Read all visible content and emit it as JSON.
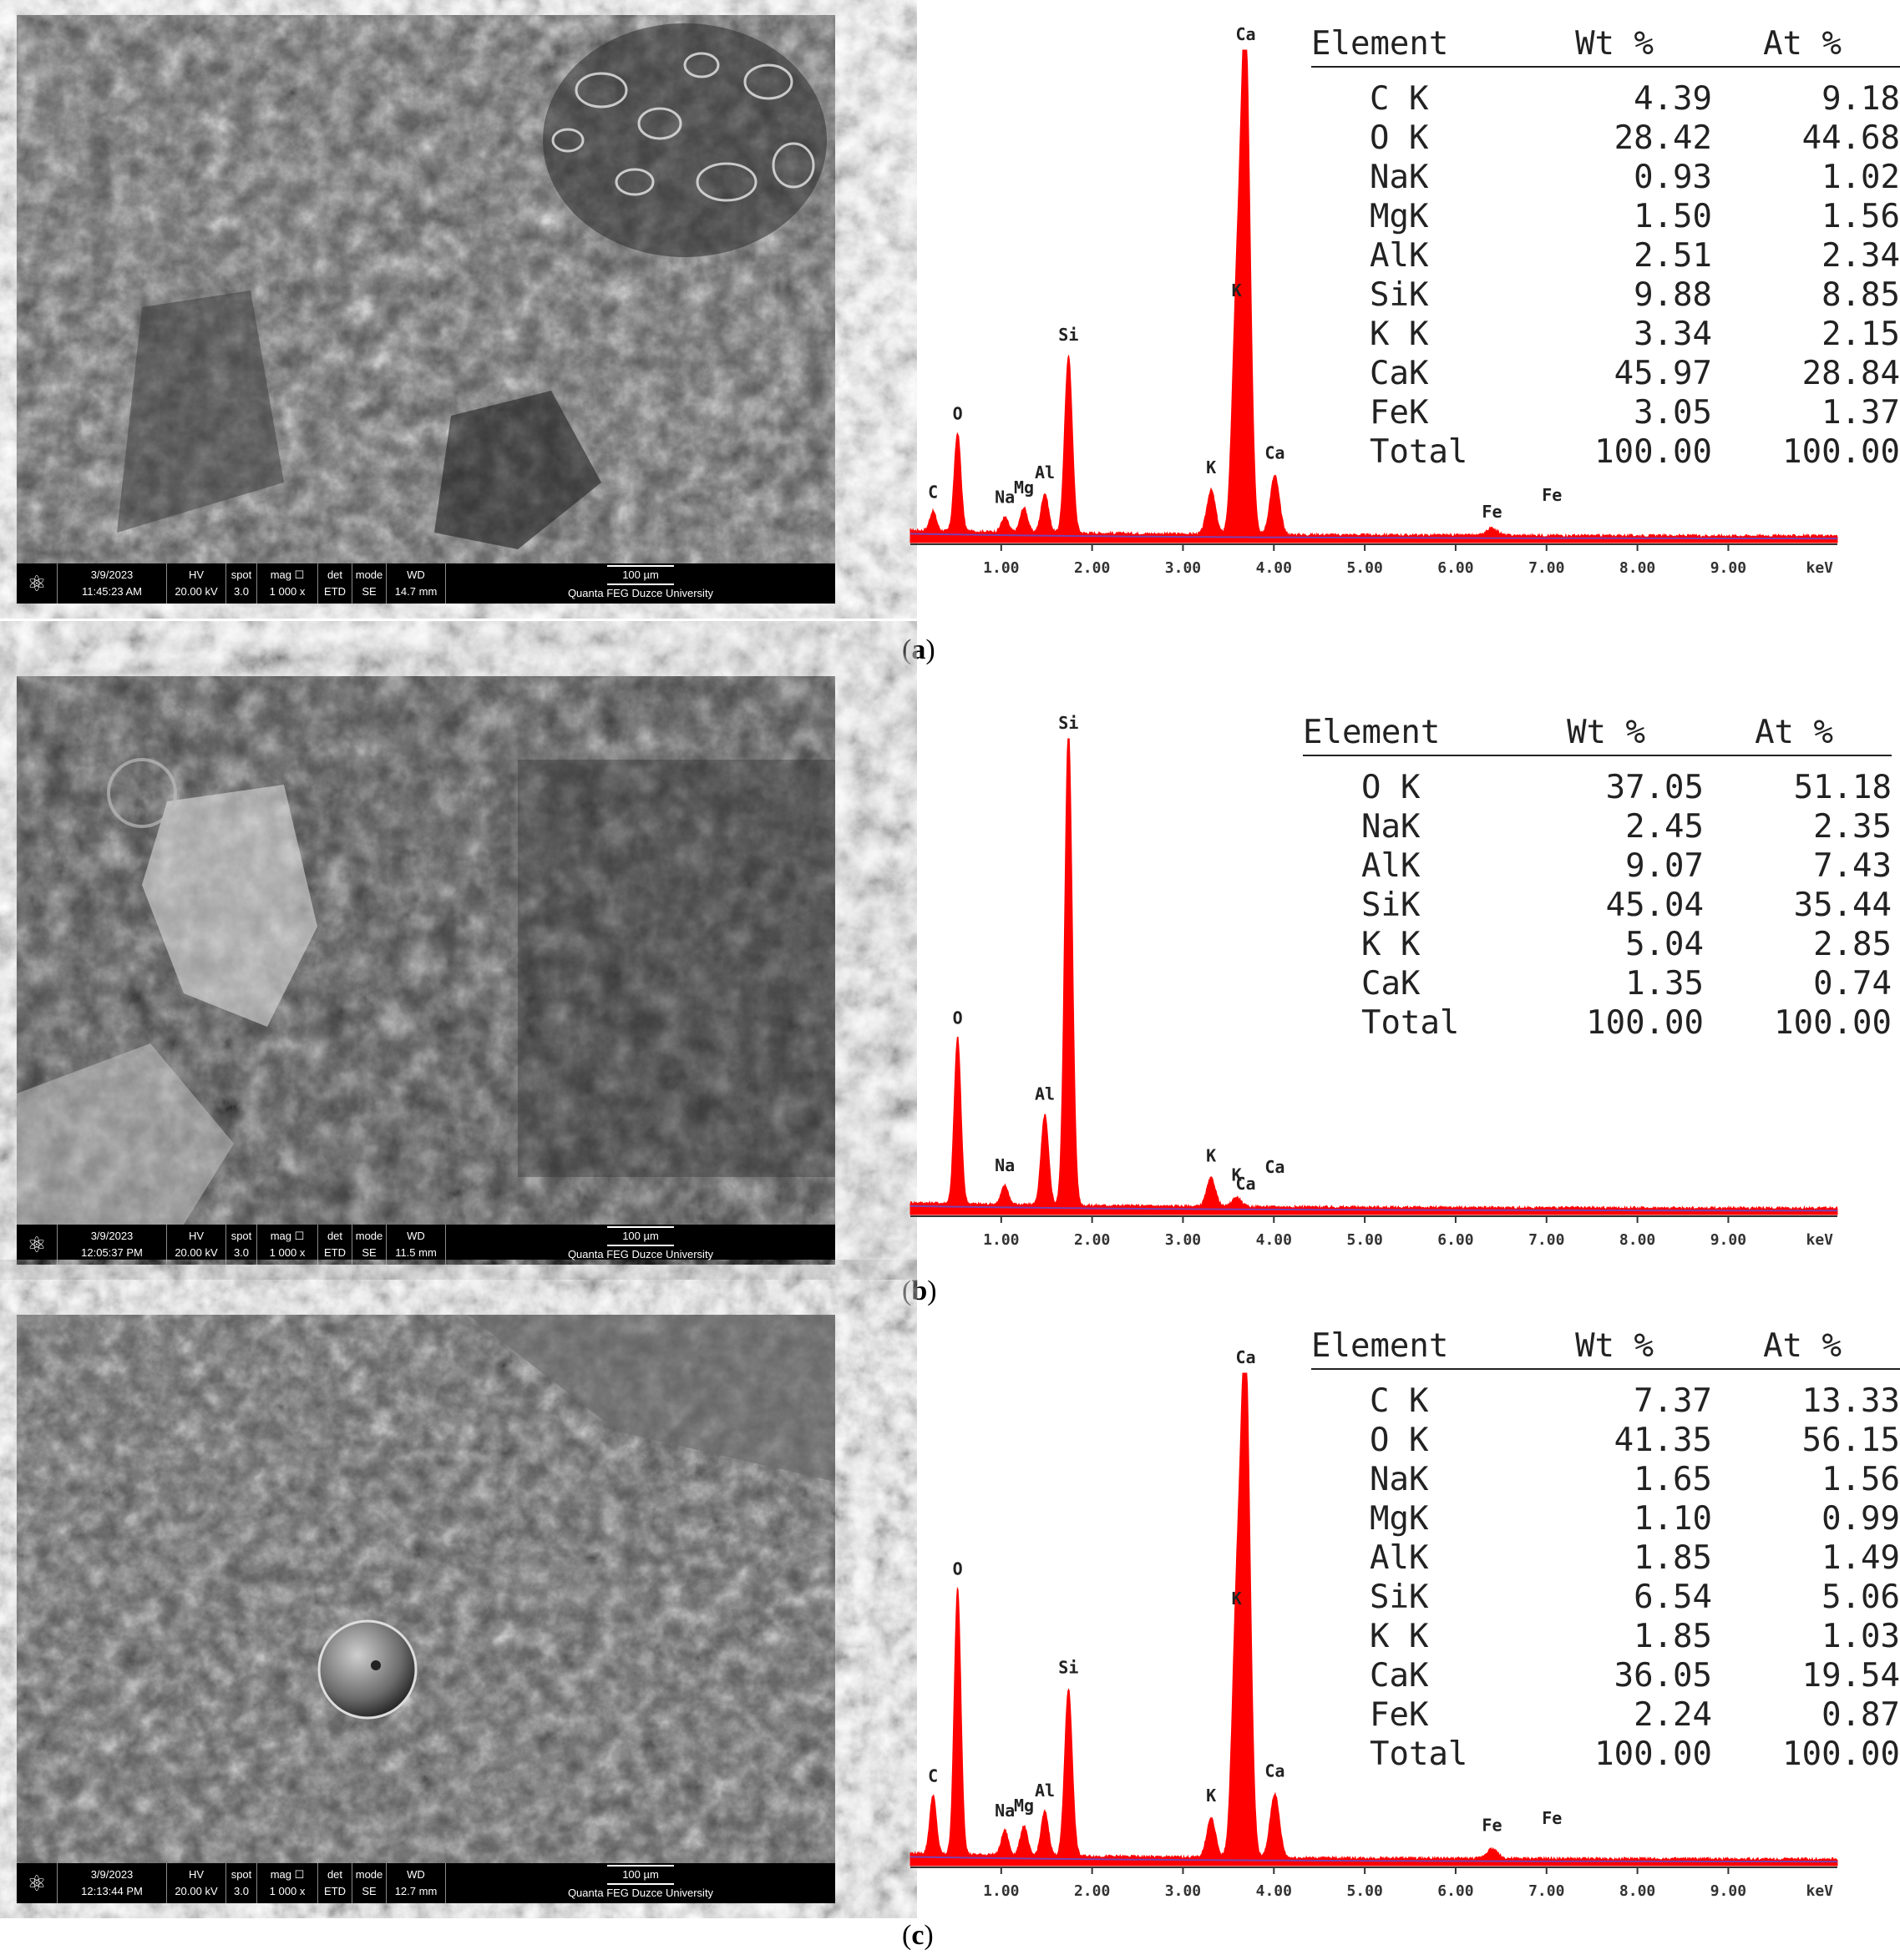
{
  "panels": [
    {
      "caption_letter": "a",
      "sem": {
        "date": "3/9/2023",
        "time": "11:45:23 AM",
        "hv_label": "HV",
        "hv": "20.00 kV",
        "spot_label": "spot",
        "spot": "3.0",
        "mag_label": "mag ☐",
        "mag": "1 000 x",
        "det_label": "det",
        "det": "ETD",
        "mode_label": "mode",
        "mode": "SE",
        "wd_label": "WD",
        "wd": "14.7 mm",
        "scale": "100 µm",
        "instrument": "Quanta FEG Duzce University"
      },
      "table": {
        "headers": [
          "Element",
          "Wt %",
          "At %"
        ],
        "rows": [
          [
            "C K",
            "4.39",
            "9.18"
          ],
          [
            "O K",
            "28.42",
            "44.68"
          ],
          [
            "NaK",
            "0.93",
            "1.02"
          ],
          [
            "MgK",
            "1.50",
            "1.56"
          ],
          [
            "AlK",
            "2.51",
            "2.34"
          ],
          [
            "SiK",
            "9.88",
            "8.85"
          ],
          [
            "K K",
            "3.34",
            "2.15"
          ],
          [
            "CaK",
            "45.97",
            "28.84"
          ],
          [
            "FeK",
            "3.05",
            "1.37"
          ],
          [
            "Total",
            "100.00",
            "100.00"
          ]
        ]
      }
    },
    {
      "caption_letter": "b",
      "sem": {
        "date": "3/9/2023",
        "time": "12:05:37 PM",
        "hv_label": "HV",
        "hv": "20.00 kV",
        "spot_label": "spot",
        "spot": "3.0",
        "mag_label": "mag ☐",
        "mag": "1 000 x",
        "det_label": "det",
        "det": "ETD",
        "mode_label": "mode",
        "mode": "SE",
        "wd_label": "WD",
        "wd": "11.5 mm",
        "scale": "100 µm",
        "instrument": "Quanta FEG Duzce University"
      },
      "table": {
        "headers": [
          "Element",
          "Wt %",
          "At %"
        ],
        "rows": [
          [
            "O K",
            "37.05",
            "51.18"
          ],
          [
            "NaK",
            "2.45",
            "2.35"
          ],
          [
            "AlK",
            "9.07",
            "7.43"
          ],
          [
            "SiK",
            "45.04",
            "35.44"
          ],
          [
            "K K",
            "5.04",
            "2.85"
          ],
          [
            "CaK",
            "1.35",
            "0.74"
          ],
          [
            "Total",
            "100.00",
            "100.00"
          ]
        ]
      }
    },
    {
      "caption_letter": "c",
      "sem": {
        "date": "3/9/2023",
        "time": "12:13:44 PM",
        "hv_label": "HV",
        "hv": "20.00 kV",
        "spot_label": "spot",
        "spot": "3.0",
        "mag_label": "mag ☐",
        "mag": "1 000 x",
        "det_label": "det",
        "det": "ETD",
        "mode_label": "mode",
        "mode": "SE",
        "wd_label": "WD",
        "wd": "12.7 mm",
        "scale": "100 µm",
        "instrument": "Quanta FEG Duzce University"
      },
      "table": {
        "headers": [
          "Element",
          "Wt %",
          "At %"
        ],
        "rows": [
          [
            "C K",
            "7.37",
            "13.33"
          ],
          [
            "O K",
            "41.35",
            "56.15"
          ],
          [
            "NaK",
            "1.65",
            "1.56"
          ],
          [
            "MgK",
            "1.10",
            "0.99"
          ],
          [
            "AlK",
            "1.85",
            "1.49"
          ],
          [
            "SiK",
            "6.54",
            "5.06"
          ],
          [
            "K K",
            "1.85",
            "1.03"
          ],
          [
            "CaK",
            "36.05",
            "19.54"
          ],
          [
            "FeK",
            "2.24",
            "0.87"
          ],
          [
            "Total",
            "100.00",
            "100.00"
          ]
        ]
      }
    }
  ],
  "chart_data": [
    {
      "type": "line",
      "xlabel": "keV",
      "x_ticks": [
        "1.00",
        "2.00",
        "3.00",
        "4.00",
        "5.00",
        "6.00",
        "7.00",
        "8.00",
        "9.00"
      ],
      "xlim": [
        0,
        10.2
      ],
      "series_color": "#ff0000",
      "peaks": [
        {
          "label": "C",
          "x": 0.25,
          "y": 0.04
        },
        {
          "label": "O",
          "x": 0.52,
          "y": 0.2
        },
        {
          "label": "Na",
          "x": 1.04,
          "y": 0.03
        },
        {
          "label": "Mg",
          "x": 1.25,
          "y": 0.05
        },
        {
          "label": "Al",
          "x": 1.48,
          "y": 0.08
        },
        {
          "label": "Si",
          "x": 1.74,
          "y": 0.36
        },
        {
          "label": "K",
          "x": 3.31,
          "y": 0.09
        },
        {
          "label": "Ca",
          "x": 3.69,
          "y": 1.0
        },
        {
          "label": "K",
          "x": 3.59,
          "y": 0.45
        },
        {
          "label": "Ca",
          "x": 4.01,
          "y": 0.12
        },
        {
          "label": "Fe",
          "x": 6.4,
          "y": 0.015
        },
        {
          "label": "Fe",
          "x": 7.06,
          "y": 0.0
        }
      ]
    },
    {
      "type": "line",
      "xlabel": "keV",
      "x_ticks": [
        "1.00",
        "2.00",
        "3.00",
        "4.00",
        "5.00",
        "6.00",
        "7.00",
        "8.00",
        "9.00"
      ],
      "xlim": [
        0,
        10.2
      ],
      "series_color": "#ff0000",
      "peaks": [
        {
          "label": "O",
          "x": 0.52,
          "y": 0.35
        },
        {
          "label": "Na",
          "x": 1.04,
          "y": 0.04
        },
        {
          "label": "Al",
          "x": 1.48,
          "y": 0.19
        },
        {
          "label": "Si",
          "x": 1.74,
          "y": 1.0
        },
        {
          "label": "K",
          "x": 3.31,
          "y": 0.06
        },
        {
          "label": "K",
          "x": 3.59,
          "y": 0.02
        },
        {
          "label": "Ca",
          "x": 3.69,
          "y": 0.0
        },
        {
          "label": "Ca",
          "x": 4.01,
          "y": 0.0
        }
      ]
    },
    {
      "type": "line",
      "xlabel": "keV",
      "x_ticks": [
        "1.00",
        "2.00",
        "3.00",
        "4.00",
        "5.00",
        "6.00",
        "7.00",
        "8.00",
        "9.00"
      ],
      "xlim": [
        0,
        10.2
      ],
      "series_color": "#ff0000",
      "peaks": [
        {
          "label": "C",
          "x": 0.25,
          "y": 0.12
        },
        {
          "label": "O",
          "x": 0.52,
          "y": 0.54
        },
        {
          "label": "Na",
          "x": 1.04,
          "y": 0.05
        },
        {
          "label": "Mg",
          "x": 1.25,
          "y": 0.06
        },
        {
          "label": "Al",
          "x": 1.48,
          "y": 0.09
        },
        {
          "label": "Si",
          "x": 1.74,
          "y": 0.34
        },
        {
          "label": "K",
          "x": 3.31,
          "y": 0.08
        },
        {
          "label": "Ca",
          "x": 3.69,
          "y": 1.0
        },
        {
          "label": "K",
          "x": 3.59,
          "y": 0.48
        },
        {
          "label": "Ca",
          "x": 4.01,
          "y": 0.13
        },
        {
          "label": "Fe",
          "x": 6.4,
          "y": 0.02
        },
        {
          "label": "Fe",
          "x": 7.06,
          "y": 0.0
        }
      ]
    }
  ]
}
